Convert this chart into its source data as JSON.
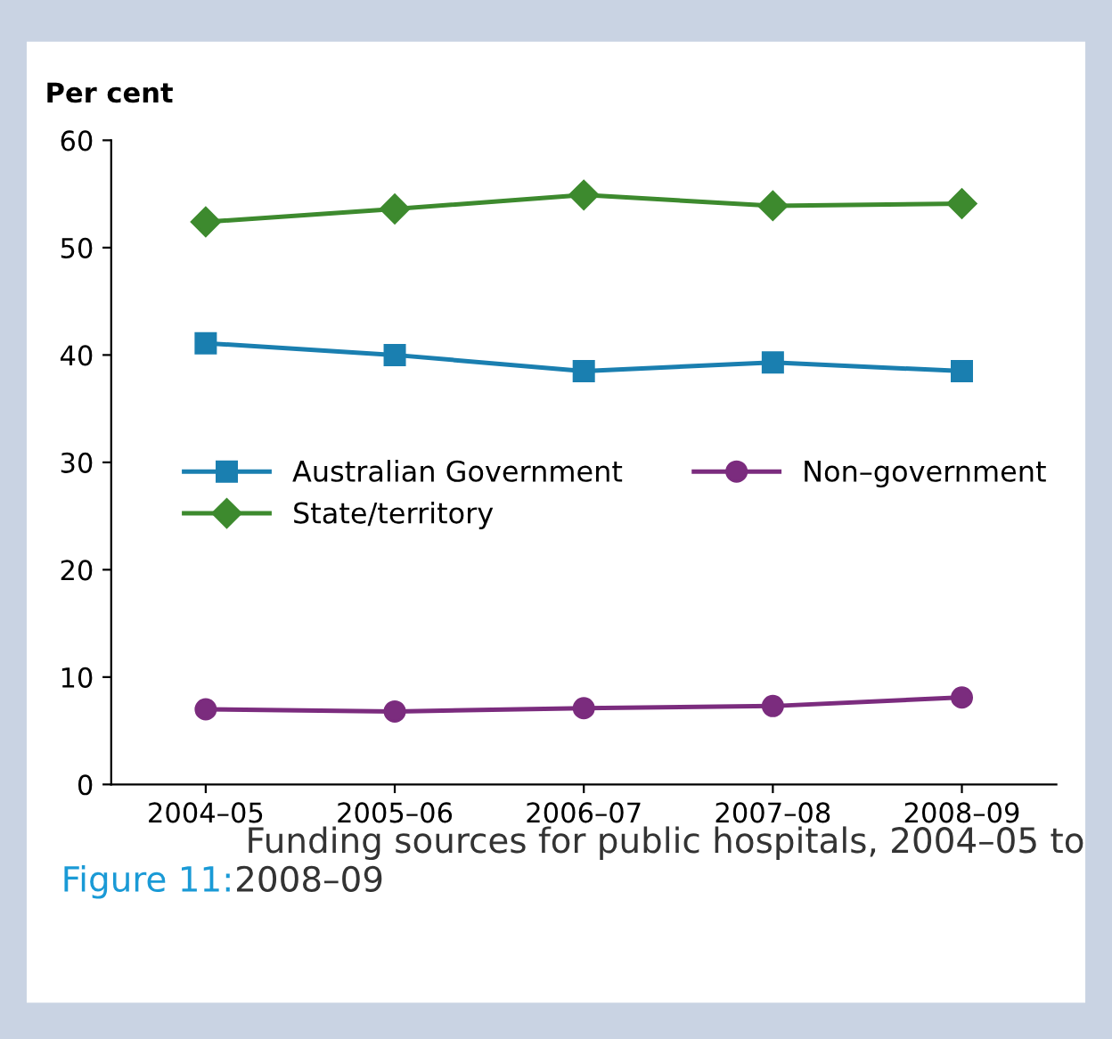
{
  "chart_data": {
    "type": "line",
    "title": "Figure 11: Funding sources for public hospitals, 2004–05 to 2008–09",
    "ylabel": "Per cent",
    "categories": [
      "2004–05",
      "2005–06",
      "2006–07",
      "2007–08",
      "2008–09"
    ],
    "series": [
      {
        "name": "Australian Government",
        "color": "#1a7fb0",
        "marker": "square",
        "values": [
          41.1,
          40.0,
          38.5,
          39.3,
          38.5
        ]
      },
      {
        "name": "State/territory",
        "color": "#3d8a2e",
        "marker": "diamond",
        "values": [
          52.4,
          53.6,
          54.9,
          53.9,
          54.1
        ]
      },
      {
        "name": "Non–government",
        "color": "#7b2c7e",
        "marker": "circle",
        "values": [
          7.0,
          6.8,
          7.1,
          7.3,
          8.1
        ]
      }
    ],
    "ylim": [
      0,
      60
    ],
    "yticks": [
      0,
      10,
      20,
      30,
      40,
      50,
      60
    ],
    "grid": false,
    "legend": "left"
  }
}
